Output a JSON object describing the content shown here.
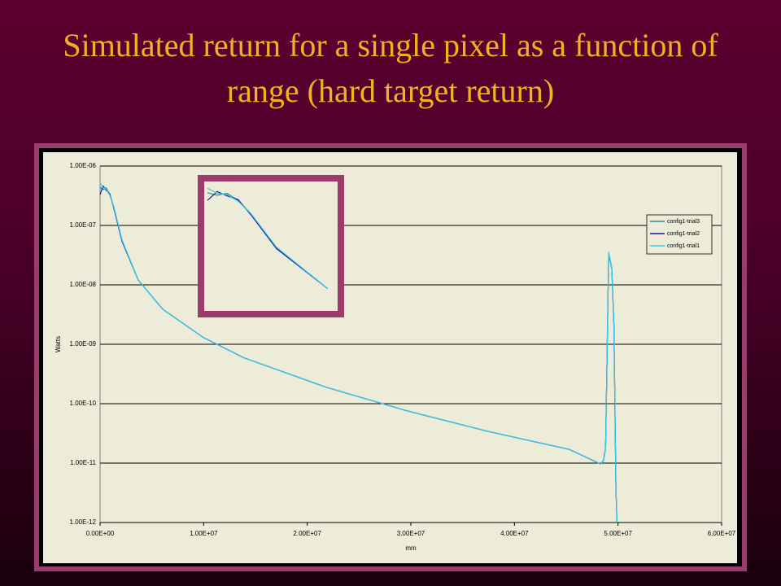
{
  "chart_data": {
    "type": "line",
    "title": "Simulated return for a single pixel as a function of range (hard target return)",
    "xlabel": "mm",
    "ylabel": "Watts",
    "x": [
      0,
      300000,
      600000,
      940000,
      1340000,
      2120000,
      3690000,
      6050000,
      9970000,
      13900000,
      21800000,
      29600000,
      37500000,
      45300000,
      48300000,
      48600000,
      48800000,
      49100000,
      49400000,
      49600000,
      49800000,
      49900000
    ],
    "series": [
      {
        "name": "config1-trial3",
        "color": "#2e8b8b",
        "values": [
          4.4e-07,
          4e-07,
          4.3e-07,
          3.3e-07,
          2e-07,
          5.6e-08,
          1.2e-08,
          3.9e-09,
          1.3e-09,
          5.9e-10,
          1.9e-10,
          7.6e-11,
          3.4e-11,
          1.7e-11,
          9.7e-12,
          1.1e-11,
          1.8e-11,
          3.5e-08,
          1.9e-08,
          2.1e-09,
          3.8e-12,
          1e-12
        ]
      },
      {
        "name": "config1-trial2",
        "color": "#1a1aa0",
        "values": [
          3.3e-07,
          4.6e-07,
          3.9e-07,
          3.4e-07,
          1.9e-07,
          5.4e-08,
          1.2e-08,
          3.9e-09,
          1.3e-09,
          5.9e-10,
          1.9e-10,
          7.6e-11,
          3.4e-11,
          1.7e-11,
          9.7e-12,
          1.1e-11,
          1.8e-11,
          3.4e-08,
          1.9e-08,
          2.1e-09,
          3.8e-12,
          1e-12
        ]
      },
      {
        "name": "config1-trial1",
        "color": "#33ccee",
        "values": [
          5.2e-07,
          4.3e-07,
          4.1e-07,
          3.2e-07,
          2e-07,
          5.7e-08,
          1.2e-08,
          3.9e-09,
          1.3e-09,
          5.9e-10,
          1.9e-10,
          7.6e-11,
          3.4e-11,
          1.7e-11,
          9.7e-12,
          1.1e-11,
          1.8e-11,
          3.6e-08,
          1.9e-08,
          2.1e-09,
          3.8e-12,
          1e-12
        ]
      }
    ],
    "xlim": [
      0,
      60000000
    ],
    "xticks": [
      {
        "value": 0,
        "label": "0.00E+00"
      },
      {
        "value": 10000000,
        "label": "1.00E+07"
      },
      {
        "value": 20000000,
        "label": "2.00E+07"
      },
      {
        "value": 30000000,
        "label": "3.00E+07"
      },
      {
        "value": 40000000,
        "label": "4.00E+07"
      },
      {
        "value": 50000000,
        "label": "5.00E+07"
      },
      {
        "value": 60000000,
        "label": "6.00E+07"
      }
    ],
    "ylim": [
      1e-12,
      1e-06
    ],
    "ylog": true,
    "yticks": [
      {
        "value": 1e-06,
        "label": "1.00E-06"
      },
      {
        "value": 1e-07,
        "label": "1.00E-07"
      },
      {
        "value": 1e-08,
        "label": "1.00E-08"
      },
      {
        "value": 1e-09,
        "label": "1.00E-09"
      },
      {
        "value": 1e-10,
        "label": "1.00E-10"
      },
      {
        "value": 1e-11,
        "label": "1.00E-11"
      },
      {
        "value": 1e-12,
        "label": "1.00E-12"
      }
    ],
    "grid": true,
    "legend": "upper right"
  }
}
